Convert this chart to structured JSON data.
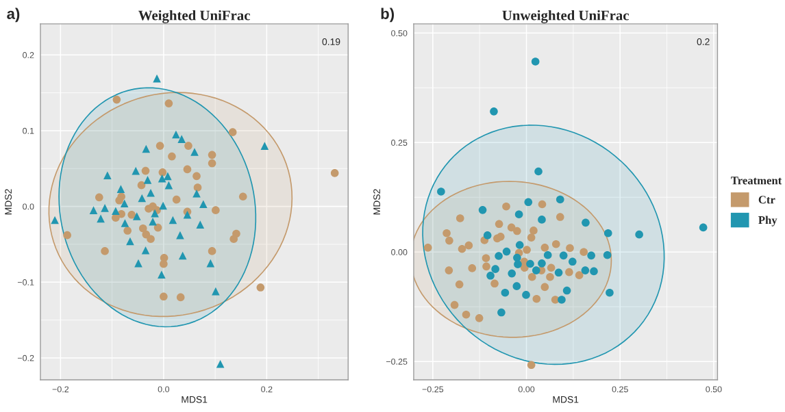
{
  "chart_data": [
    {
      "type": "scatter",
      "title": "Weighted UniFrac",
      "xlabel": "MDS1",
      "ylabel": "MDS2",
      "annotations": [
        "a)",
        "0.19"
      ],
      "xlim": [
        -0.239,
        0.358
      ],
      "ylim": [
        -0.229,
        0.241
      ],
      "xticks": [
        {
          "value": -0.2,
          "label": "−0.2"
        },
        {
          "value": 0.0,
          "label": "0.0"
        },
        {
          "value": 0.2,
          "label": "0.2"
        }
      ],
      "yticks": [
        {
          "value": -0.2,
          "label": "−0.2"
        },
        {
          "value": -0.1,
          "label": "−0.1"
        },
        {
          "value": 0.0,
          "label": "0.0"
        },
        {
          "value": 0.1,
          "label": "0.1"
        },
        {
          "value": 0.2,
          "label": "0.2"
        }
      ],
      "grid": true,
      "series": [
        {
          "color": "#c49a6c",
          "marker": "circle",
          "x": [
            -0.091,
            0.01,
            -0.007,
            0.016,
            0.048,
            0.046,
            -0.035,
            -0.002,
            -0.043,
            -0.125,
            -0.082,
            -0.086,
            0.025,
            0.134,
            0.094,
            0.094,
            0.064,
            0.066,
            0.154,
            0.332,
            -0.021,
            -0.029,
            -0.013,
            -0.082,
            -0.062,
            -0.093,
            0.046,
            0.101,
            -0.187,
            -0.07,
            -0.04,
            -0.011,
            -0.034,
            -0.025,
            -0.114,
            0.001,
            0.0,
            0.094,
            0.141,
            0.136,
            0.0,
            0.033,
            0.188
          ],
          "values": [
            0.141,
            0.136,
            0.08,
            0.066,
            0.08,
            0.049,
            0.047,
            0.045,
            0.028,
            0.012,
            0.013,
            0.008,
            0.009,
            0.098,
            0.068,
            0.057,
            0.04,
            0.025,
            0.013,
            0.044,
            0.0,
            -0.003,
            -0.005,
            -0.01,
            -0.011,
            -0.015,
            -0.007,
            -0.005,
            -0.038,
            -0.032,
            -0.029,
            -0.028,
            -0.037,
            -0.043,
            -0.059,
            -0.068,
            -0.076,
            -0.059,
            -0.036,
            -0.043,
            -0.119,
            -0.12,
            -0.107
          ]
        },
        {
          "color": "#2196b0",
          "marker": "triangle",
          "x": [
            -0.013,
            0.024,
            0.035,
            -0.034,
            -0.109,
            -0.054,
            -0.031,
            -0.003,
            0.008,
            0.01,
            -0.083,
            -0.025,
            -0.042,
            -0.076,
            0.06,
            0.196,
            0.064,
            0.077,
            -0.211,
            -0.136,
            -0.114,
            -0.093,
            -0.122,
            -0.075,
            -0.052,
            -0.017,
            -0.001,
            -0.021,
            0.018,
            0.046,
            0.071,
            0.032,
            -0.065,
            -0.035,
            0.037,
            -0.049,
            0.091,
            -0.004,
            0.101,
            0.11
          ],
          "values": [
            0.169,
            0.095,
            0.089,
            0.076,
            0.041,
            0.047,
            0.035,
            0.037,
            0.04,
            0.028,
            0.023,
            0.018,
            0.011,
            0.004,
            0.072,
            0.08,
            0.017,
            0.003,
            -0.018,
            -0.005,
            -0.002,
            -0.006,
            -0.016,
            -0.022,
            -0.013,
            -0.009,
            0.001,
            -0.02,
            -0.018,
            -0.011,
            -0.024,
            -0.038,
            -0.046,
            -0.058,
            -0.065,
            -0.075,
            -0.075,
            -0.09,
            -0.112,
            -0.208
          ]
        }
      ]
    },
    {
      "type": "scatter",
      "title": "Unweighted UniFrac",
      "xlabel": "MDS1",
      "ylabel": "MDS2",
      "annotations": [
        "b)",
        "0.2"
      ],
      "xlim": [
        -0.301,
        0.51
      ],
      "ylim": [
        -0.292,
        0.521
      ],
      "xticks": [
        {
          "value": -0.25,
          "label": "−0.25"
        },
        {
          "value": 0.0,
          "label": "0.00"
        },
        {
          "value": 0.25,
          "label": "0.25"
        },
        {
          "value": 0.5,
          "label": "0.50"
        }
      ],
      "yticks": [
        {
          "value": -0.25,
          "label": "−0.25"
        },
        {
          "value": 0.0,
          "label": "0.00"
        },
        {
          "value": 0.25,
          "label": "0.25"
        },
        {
          "value": 0.5,
          "label": "0.50"
        }
      ],
      "grid": true,
      "legend": "right",
      "legend_title": "Treatment",
      "series": [
        {
          "name": "Ctr",
          "color": "#c49a6c",
          "marker": "circle",
          "x": [
            -0.263,
            -0.213,
            -0.206,
            -0.177,
            -0.172,
            -0.154,
            -0.207,
            -0.145,
            -0.179,
            -0.192,
            -0.161,
            -0.126,
            -0.054,
            0.042,
            0.09,
            -0.073,
            -0.04,
            -0.025,
            0.019,
            0.013,
            -0.069,
            -0.078,
            -0.112,
            0.079,
            0.049,
            0.001,
            0.116,
            0.153,
            -0.02,
            -0.108,
            -0.107,
            -0.006,
            -0.005,
            0.04,
            0.066,
            0.114,
            0.141,
            0.015,
            0.063,
            -0.085,
            0.049,
            0.027,
            0.077,
            0.013
          ],
          "values": [
            0.01,
            0.043,
            0.026,
            0.077,
            0.007,
            0.015,
            -0.042,
            -0.037,
            -0.074,
            -0.121,
            -0.143,
            -0.151,
            0.104,
            0.109,
            0.08,
            0.064,
            0.056,
            0.048,
            0.049,
            0.033,
            0.035,
            0.031,
            0.027,
            0.018,
            0.01,
            0.005,
            0.009,
            0.0,
            -0.002,
            -0.014,
            -0.033,
            -0.022,
            -0.036,
            -0.042,
            -0.036,
            -0.046,
            -0.053,
            -0.057,
            -0.057,
            -0.072,
            -0.08,
            -0.107,
            -0.109,
            -0.258
          ]
        },
        {
          "name": "Phy",
          "color": "#2196b0",
          "marker": "circle",
          "x": [
            0.024,
            -0.087,
            0.032,
            -0.228,
            -0.117,
            0.005,
            0.09,
            -0.02,
            0.041,
            0.158,
            0.218,
            0.301,
            0.472,
            -0.104,
            -0.018,
            -0.053,
            -0.074,
            -0.025,
            -0.023,
            0.01,
            0.041,
            0.057,
            0.099,
            0.123,
            0.173,
            0.216,
            0.157,
            0.18,
            -0.083,
            -0.096,
            -0.039,
            0.026,
            0.086,
            -0.026,
            -0.057,
            -0.001,
            0.108,
            0.222,
            0.094,
            -0.067
          ],
          "values": [
            0.435,
            0.321,
            0.184,
            0.138,
            0.096,
            0.114,
            0.12,
            0.086,
            0.074,
            0.067,
            0.043,
            0.04,
            0.056,
            0.038,
            0.016,
            0.001,
            -0.009,
            -0.013,
            -0.028,
            -0.027,
            -0.026,
            -0.007,
            -0.008,
            -0.022,
            -0.008,
            -0.007,
            -0.042,
            -0.044,
            -0.039,
            -0.054,
            -0.049,
            -0.042,
            -0.047,
            -0.078,
            -0.093,
            -0.098,
            -0.088,
            -0.093,
            -0.109,
            -0.138
          ]
        }
      ]
    }
  ]
}
